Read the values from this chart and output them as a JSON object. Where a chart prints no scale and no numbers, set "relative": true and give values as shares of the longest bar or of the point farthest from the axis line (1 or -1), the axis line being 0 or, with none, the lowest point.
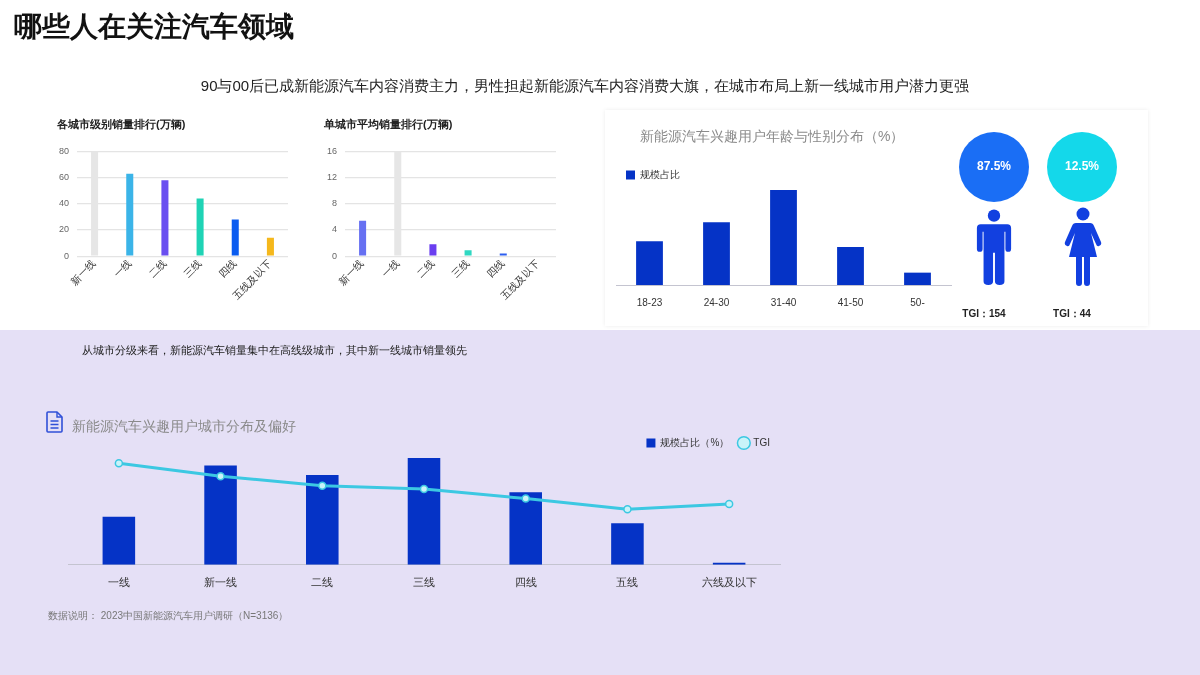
{
  "chart_data": [
    {
      "type": "other",
      "title": "哪些人在关注汽车领域",
      "subtitle": "90与00后已成新能源汽车内容消费主力，男性担起新能源汽车内容消费大旗，在城市布局上新一线城市用户潜力更强"
    },
    {
      "type": "bar",
      "title": "各城市级别销量排行(万辆)",
      "categories": [
        "新一线",
        "一线",
        "二线",
        "三线",
        "四线",
        "五线及以下"
      ],
      "values": [
        80,
        63,
        58,
        44,
        28,
        14
      ],
      "colors": [
        "#e6e6e6",
        "#3bb4e8",
        "#6a4ff0",
        "#1fd3b5",
        "#0b5cf0",
        "#f5b81c"
      ],
      "ylim": [
        0,
        80
      ],
      "yticks": [
        0,
        20,
        40,
        60,
        80
      ],
      "grid": "y"
    },
    {
      "type": "bar",
      "title": "单城市平均销量排行(万辆)",
      "categories": [
        "新一线",
        "一线",
        "二线",
        "三线",
        "四线",
        "五线及以下"
      ],
      "values": [
        5.4,
        16,
        1.8,
        0.9,
        0.4,
        null
      ],
      "colors": [
        "#6670f2",
        "#e6e6e6",
        "#6a3ef0",
        "#2fd8c2",
        "#2c5ef0",
        "#f5b81c"
      ],
      "ylim": [
        0,
        16
      ],
      "yticks": [
        0,
        4,
        8,
        12,
        16
      ],
      "grid": "y"
    },
    {
      "type": "bar",
      "title": "新能源汽车兴趣用户年龄与性别分布（%）",
      "categories": [
        "18-23",
        "24-30",
        "31-40",
        "41-50",
        "50-"
      ],
      "series": [
        {
          "name": "规模占比",
          "color": "#0533c6",
          "values": [
            0.46,
            0.66,
            1,
            0.4,
            0.13
          ]
        }
      ],
      "relative": true,
      "legend": "top left"
    },
    {
      "type": "other",
      "annotations": [
        "87.5%",
        "12.5%",
        "TGI：154",
        "TGI：44"
      ]
    },
    {
      "type": "bar",
      "title": "新能源汽车兴趣用户城市分布及偏好",
      "subtitle": "从城市分级来看，新能源汽车销量集中在高线级城市，其中新一线城市销量领先",
      "categories": [
        "一线",
        "新一线",
        "二线",
        "三线",
        "四线",
        "五线",
        "六线及以下"
      ],
      "series": [
        {
          "name": "规模占比（%）",
          "color": "#0533c6",
          "values": [
            0.45,
            0.93,
            0.84,
            1,
            0.68,
            0.39,
            0.02
          ]
        },
        {
          "name": "TGI",
          "type": "line",
          "color": "#3cc8e2",
          "marker": "circle",
          "values": [
            0.95,
            0.83,
            0.74,
            0.71,
            0.62,
            0.52,
            0.57
          ]
        }
      ],
      "relative": true,
      "legend": "top right",
      "annotations": [
        "数据说明： 2023中国新能源汽车用户调研（N=3136）"
      ]
    }
  ]
}
